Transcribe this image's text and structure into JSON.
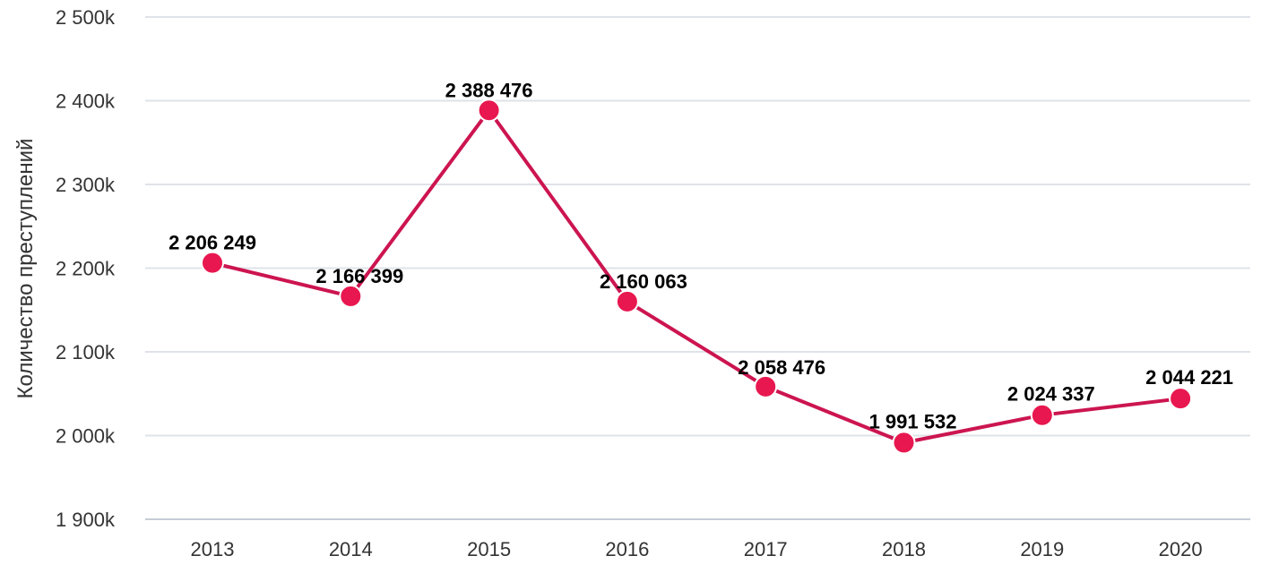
{
  "chart_data": {
    "type": "line",
    "title": "",
    "xlabel": "",
    "ylabel": "Количество преступлений",
    "x": [
      "2013",
      "2014",
      "2015",
      "2016",
      "2017",
      "2018",
      "2019",
      "2020"
    ],
    "series": [
      {
        "values": [
          2206249,
          2166399,
          2388476,
          2160063,
          2058476,
          1991532,
          2024337,
          2044221
        ],
        "data_labels": [
          "2 206 249",
          "2 166 399",
          "2 388 476",
          "2 160 063",
          "2 058 476",
          "1 991 532",
          "2 024 337",
          "2 044 221"
        ],
        "color": "#cc1550",
        "marker_color": "#e8174f"
      }
    ],
    "ylim": [
      1900000,
      2500000
    ],
    "yticks": [
      1900000,
      2000000,
      2100000,
      2200000,
      2300000,
      2400000,
      2500000
    ],
    "ytick_labels": [
      "1 900k",
      "2 000k",
      "2 100k",
      "2 200k",
      "2 300k",
      "2 400k",
      "2 500k"
    ],
    "grid": true,
    "legend": "none"
  }
}
